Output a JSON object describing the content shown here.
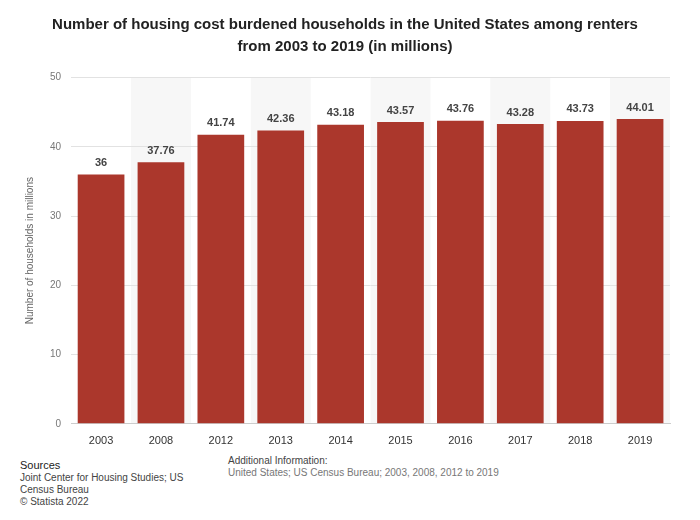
{
  "chart_data": {
    "type": "bar",
    "title": [
      "Number of housing cost burdened households in the United States among renters",
      "from 2003 to 2019 (in millions)"
    ],
    "y_label": "Number of households in millions",
    "categories": [
      "2003",
      "2008",
      "2012",
      "2013",
      "2014",
      "2015",
      "2016",
      "2017",
      "2018",
      "2019"
    ],
    "values": [
      36,
      37.76,
      41.74,
      42.36,
      43.18,
      43.57,
      43.76,
      43.28,
      43.73,
      44.01
    ],
    "color": "#ab372c",
    "ylim": [
      0,
      50
    ],
    "yticks": [
      0,
      10,
      20,
      30,
      40,
      50
    ],
    "grid": true,
    "data_labels": true
  },
  "footer": {
    "sources_heading": "Sources",
    "sources": [
      "Joint Center for Housing Studies; US Census Bureau",
      "© Statista 2022"
    ],
    "additional_heading": "Additional Information:",
    "additional": "United States; US Census Bureau; 2003, 2008, 2012 to 2019"
  }
}
